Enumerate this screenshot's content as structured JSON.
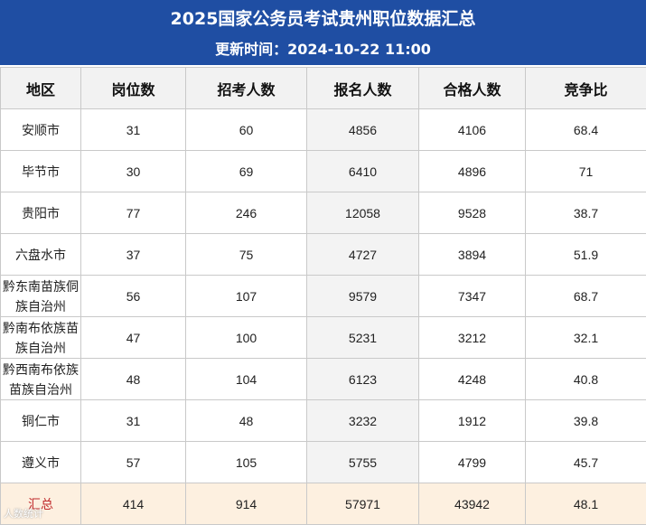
{
  "header": {
    "title": "2025国家公务员考试贵州职位数据汇总",
    "update_time": "更新时间：2024-10-22 11:00"
  },
  "table": {
    "columns": [
      "地区",
      "岗位数",
      "招考人数",
      "报名人数",
      "合格人数",
      "竞争比"
    ],
    "rows": [
      {
        "region": "安顺市",
        "positions": "31",
        "recruits": "60",
        "applicants": "4856",
        "qualified": "4106",
        "ratio": "68.4"
      },
      {
        "region": "毕节市",
        "positions": "30",
        "recruits": "69",
        "applicants": "6410",
        "qualified": "4896",
        "ratio": "71"
      },
      {
        "region": "贵阳市",
        "positions": "77",
        "recruits": "246",
        "applicants": "12058",
        "qualified": "9528",
        "ratio": "38.7"
      },
      {
        "region": "六盘水市",
        "positions": "37",
        "recruits": "75",
        "applicants": "4727",
        "qualified": "3894",
        "ratio": "51.9"
      },
      {
        "region": "黔东南苗族侗族自治州",
        "positions": "56",
        "recruits": "107",
        "applicants": "9579",
        "qualified": "7347",
        "ratio": "68.7"
      },
      {
        "region": "黔南布依族苗族自治州",
        "positions": "47",
        "recruits": "100",
        "applicants": "5231",
        "qualified": "3212",
        "ratio": "32.1"
      },
      {
        "region": "黔西南布依族苗族自治州",
        "positions": "48",
        "recruits": "104",
        "applicants": "6123",
        "qualified": "4248",
        "ratio": "40.8"
      },
      {
        "region": "铜仁市",
        "positions": "31",
        "recruits": "48",
        "applicants": "3232",
        "qualified": "1912",
        "ratio": "39.8"
      },
      {
        "region": "遵义市",
        "positions": "57",
        "recruits": "105",
        "applicants": "5755",
        "qualified": "4799",
        "ratio": "45.7"
      },
      {
        "region": "汇总",
        "positions": "414",
        "recruits": "914",
        "applicants": "57971",
        "qualified": "43942",
        "ratio": "48.1"
      }
    ]
  },
  "watermark": "人数统计"
}
